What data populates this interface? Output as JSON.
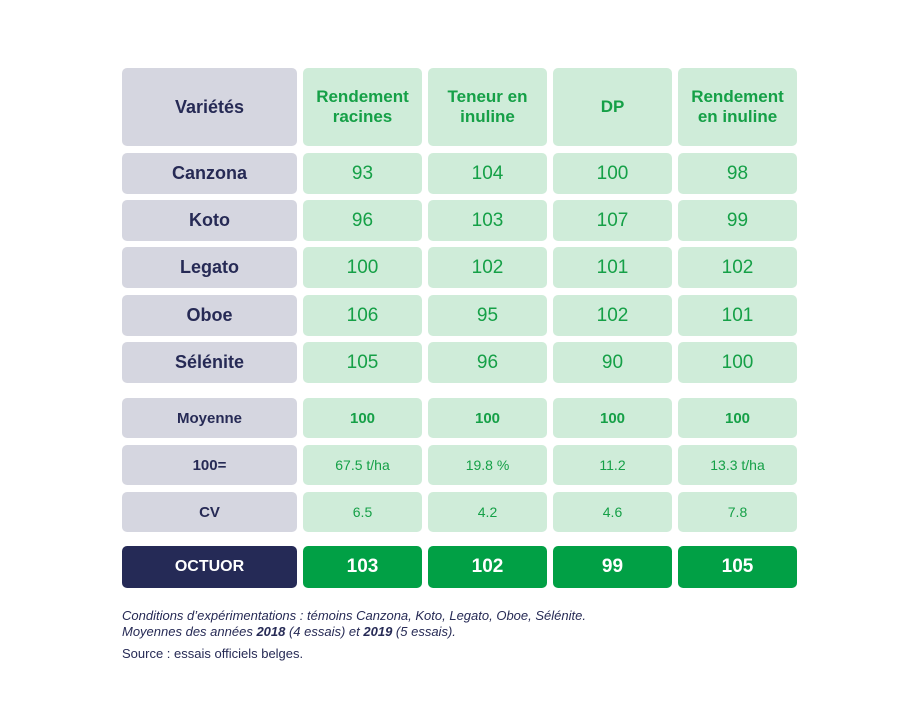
{
  "table": {
    "header": {
      "label": "Variétés",
      "columns": [
        "Rendement racines",
        "Teneur en inuline",
        "DP",
        "Rendement en inuline"
      ]
    },
    "varieties": [
      {
        "name": "Canzona",
        "values": [
          "93",
          "104",
          "100",
          "98"
        ]
      },
      {
        "name": "Koto",
        "values": [
          "96",
          "103",
          "107",
          "99"
        ]
      },
      {
        "name": "Legato",
        "values": [
          "100",
          "102",
          "101",
          "102"
        ]
      },
      {
        "name": "Oboe",
        "values": [
          "106",
          "95",
          "102",
          "101"
        ]
      },
      {
        "name": "Sélénite",
        "values": [
          "105",
          "96",
          "90",
          "100"
        ]
      }
    ],
    "stats": [
      {
        "name": "Moyenne",
        "values": [
          "100",
          "100",
          "100",
          "100"
        ]
      },
      {
        "name": "100=",
        "values": [
          "67.5 t/ha",
          "19.8 %",
          "11.2",
          "13.3 t/ha"
        ]
      },
      {
        "name": "CV",
        "values": [
          "6.5",
          "4.2",
          "4.6",
          "7.8"
        ]
      }
    ],
    "highlight": {
      "name": "OCTUOR",
      "values": [
        "103",
        "102",
        "99",
        "105"
      ]
    }
  },
  "notes": {
    "line1": "Conditions d’expérimentations : témoins Canzona, Koto, Legato, Oboe, Sélénite.",
    "line2_prefix": "Moyennes des années ",
    "year1": "2018",
    "year1_trials": " (4 essais) et ",
    "year2": "2019",
    "year2_trials": " (5 essais).",
    "source": "Source : essais officiels belges."
  },
  "colors": {
    "label_bg": "#d5d6e0",
    "label_text": "#262a55",
    "value_bg": "#cfecd9",
    "value_text": "#15a047",
    "highlight_label_bg": "#252a56",
    "highlight_value_bg": "#01a045"
  }
}
